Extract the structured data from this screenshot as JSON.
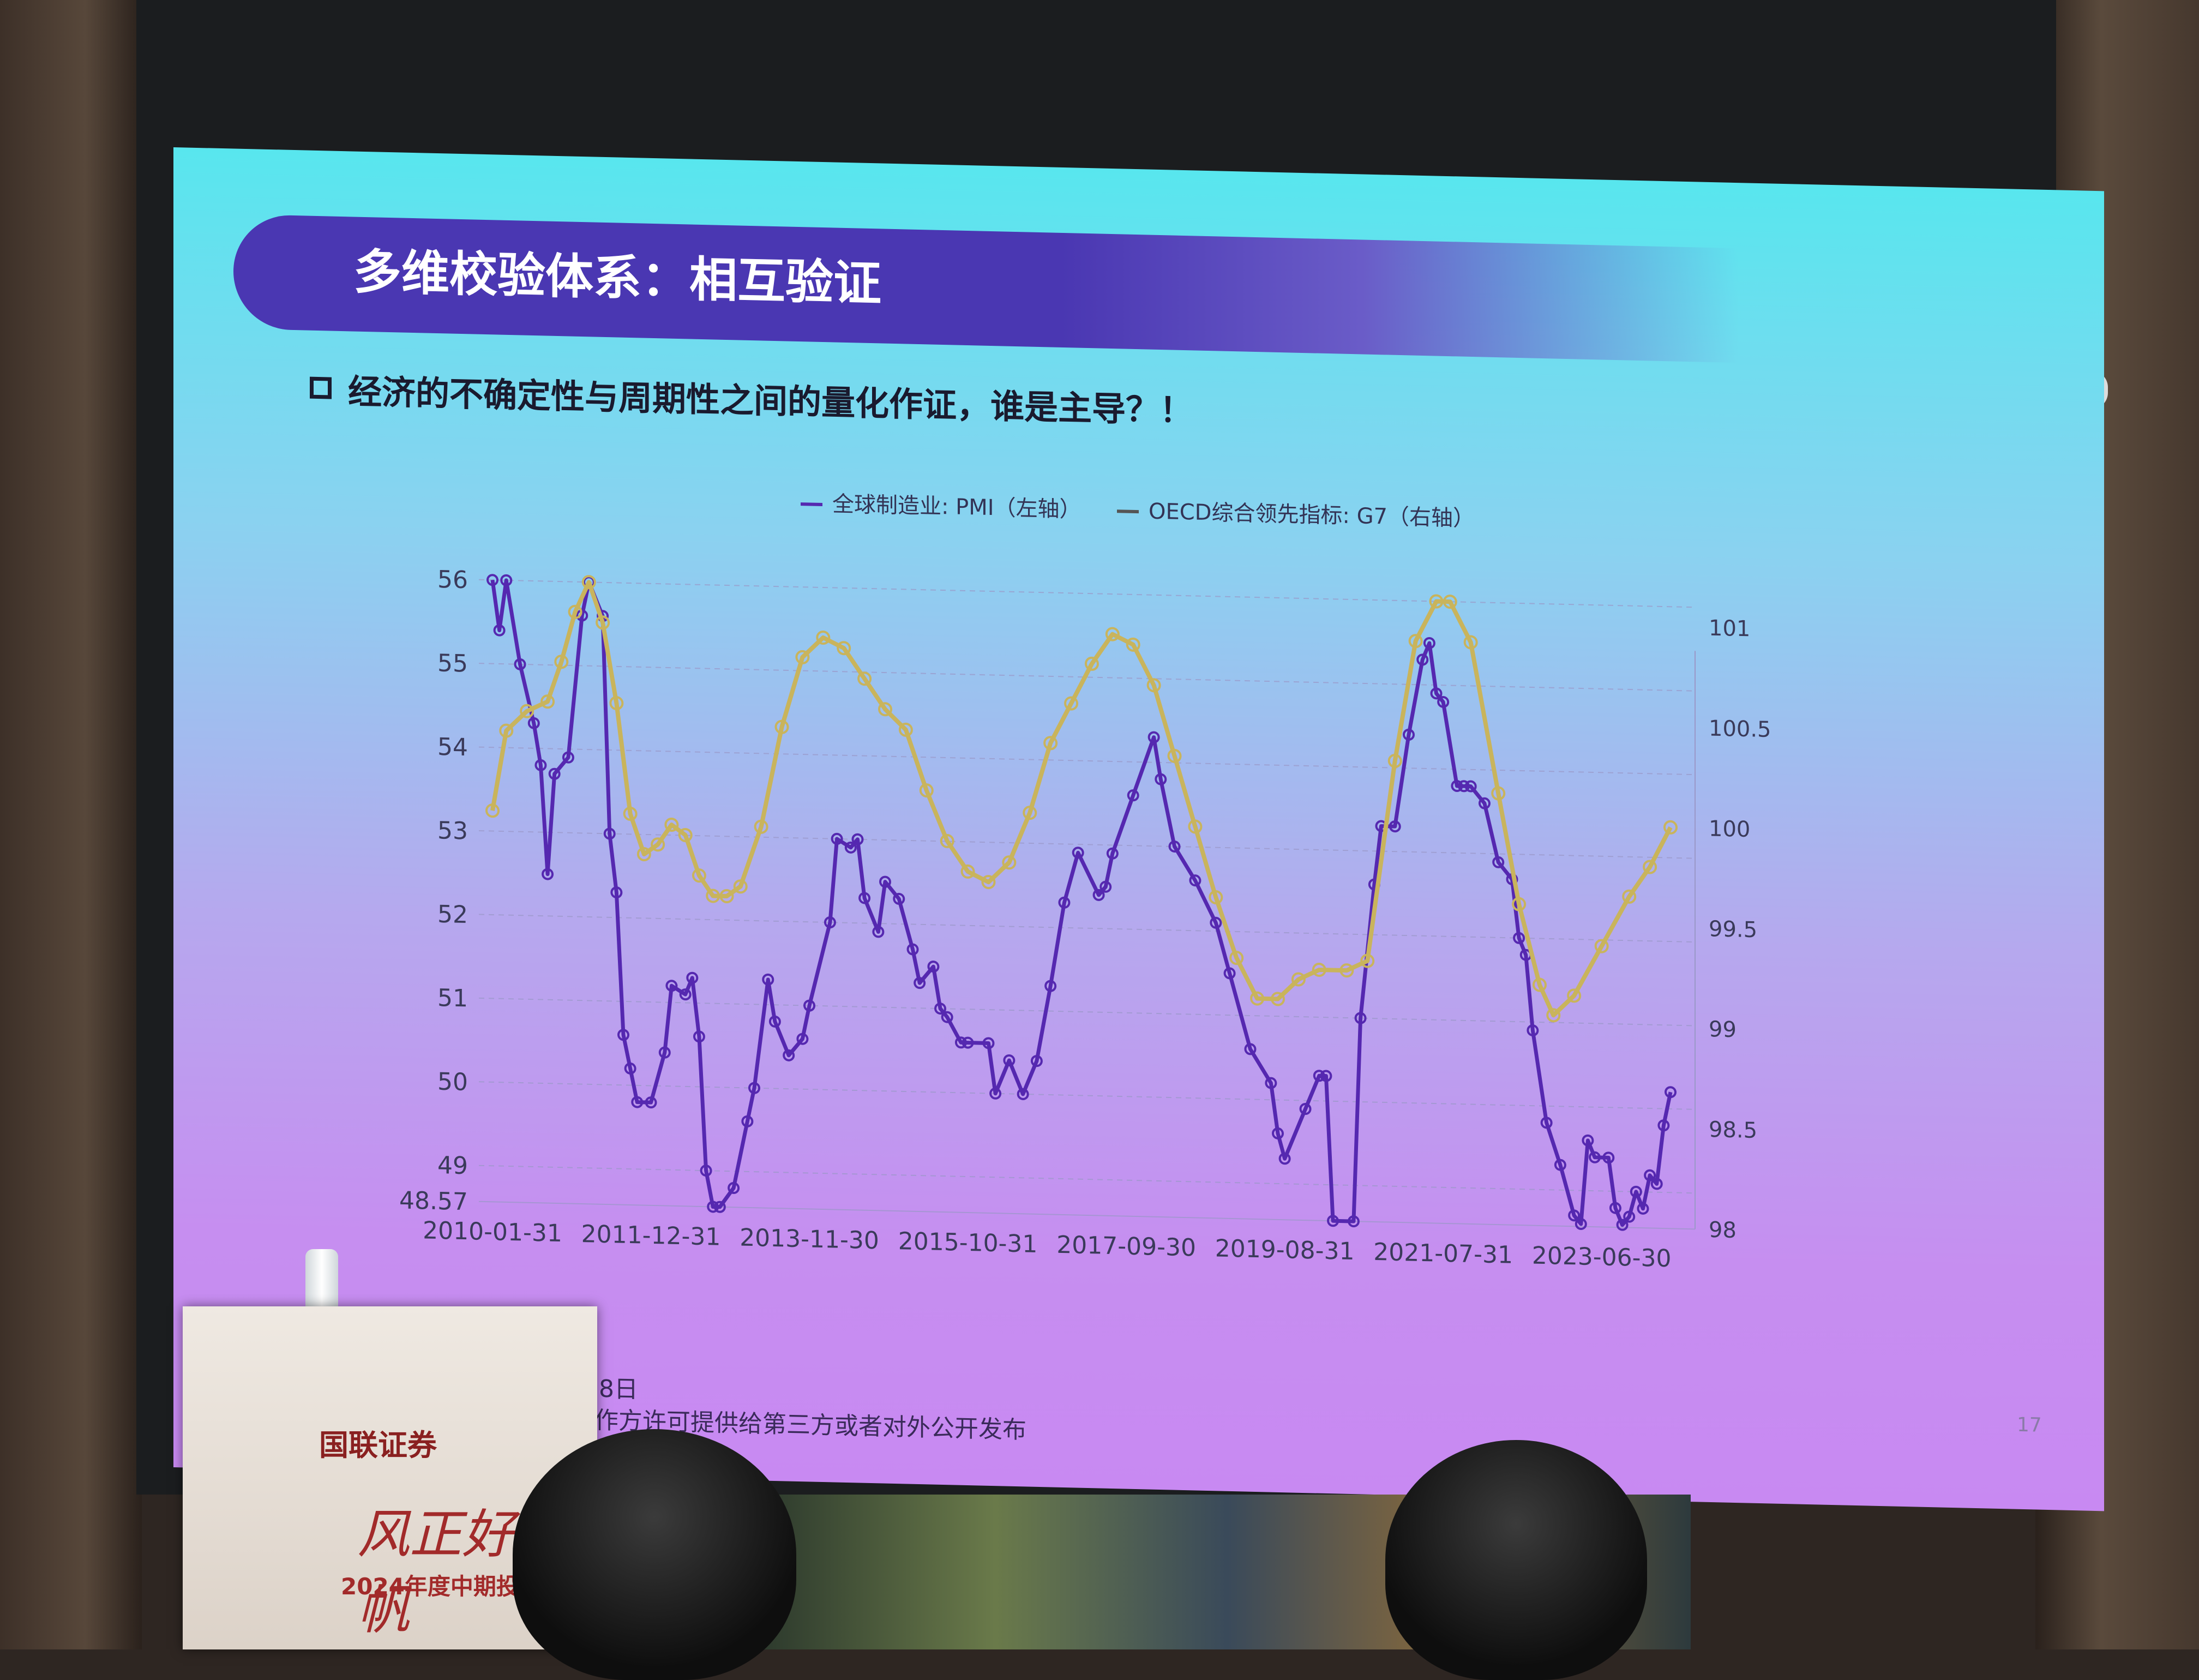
{
  "slide": {
    "title": "多维校验体系：相互验证",
    "subtitle": "经济的不确定性与周期性之间的量化作证，谁是主导？！",
    "footnote_line1": "周期；2024年5月8日",
    "footnote_line2": "参考，请勿未经制作方许可提供给第三方或者对外公开发布",
    "page_number": "17"
  },
  "podium": {
    "logo_text": "国联证券",
    "slogan": "风正好扬帆",
    "event_text": "2024年度中期投资"
  },
  "colors": {
    "pmi_line": "#5528b0",
    "oecd_line": "#c9b45c",
    "axis_text": "#3a3a5a",
    "grid": "#9a98c8"
  },
  "chart_data": {
    "type": "line",
    "legend": [
      "全球制造业: PMI（左轴）",
      "OECD综合领先指标: G7（右轴）"
    ],
    "legend_placement": "top-center",
    "x_ticks": [
      "2010-01-31",
      "2011-12-31",
      "2013-11-30",
      "2015-10-31",
      "2017-09-30",
      "2019-08-31",
      "2021-07-31",
      "2023-06-30"
    ],
    "x_range": [
      "2010-01-31",
      "2024-04-30"
    ],
    "y_left": {
      "ticks": [
        "48.57",
        "49",
        "50",
        "51",
        "52",
        "53",
        "54",
        "55",
        "56"
      ],
      "range": [
        48.57,
        56
      ]
    },
    "y_right": {
      "ticks": [
        "98",
        "98.5",
        "99",
        "99.5",
        "100",
        "100.5",
        "101"
      ],
      "range": [
        98,
        101.1
      ]
    },
    "grid": "horizontal dashed",
    "series": [
      {
        "name": "全球制造业: PMI（左轴）",
        "axis": "left",
        "points": [
          [
            "2010-01",
            56
          ],
          [
            "2010-02",
            55.4
          ],
          [
            "2010-03",
            56
          ],
          [
            "2010-05",
            55
          ],
          [
            "2010-07",
            54.3
          ],
          [
            "2010-08",
            53.8
          ],
          [
            "2010-09",
            52.5
          ],
          [
            "2010-10",
            53.7
          ],
          [
            "2010-12",
            53.9
          ],
          [
            "2011-02",
            55.6
          ],
          [
            "2011-03",
            56
          ],
          [
            "2011-05",
            55.6
          ],
          [
            "2011-06",
            53.0
          ],
          [
            "2011-07",
            52.3
          ],
          [
            "2011-08",
            50.6
          ],
          [
            "2011-09",
            50.2
          ],
          [
            "2011-10",
            49.8
          ],
          [
            "2011-12",
            49.8
          ],
          [
            "2012-02",
            50.4
          ],
          [
            "2012-03",
            51.2
          ],
          [
            "2012-05",
            51.1
          ],
          [
            "2012-06",
            51.3
          ],
          [
            "2012-07",
            50.6
          ],
          [
            "2012-08",
            49.0
          ],
          [
            "2012-09",
            48.57
          ],
          [
            "2012-10",
            48.57
          ],
          [
            "2012-12",
            48.8
          ],
          [
            "2013-02",
            49.6
          ],
          [
            "2013-03",
            50.0
          ],
          [
            "2013-05",
            51.3
          ],
          [
            "2013-06",
            50.8
          ],
          [
            "2013-08",
            50.4
          ],
          [
            "2013-10",
            50.6
          ],
          [
            "2013-11",
            51.0
          ],
          [
            "2014-02",
            52.0
          ],
          [
            "2014-03",
            53.0
          ],
          [
            "2014-05",
            52.9
          ],
          [
            "2014-06",
            53.0
          ],
          [
            "2014-07",
            52.3
          ],
          [
            "2014-09",
            51.9
          ],
          [
            "2014-10",
            52.5
          ],
          [
            "2014-12",
            52.3
          ],
          [
            "2015-02",
            51.7
          ],
          [
            "2015-03",
            51.3
          ],
          [
            "2015-05",
            51.5
          ],
          [
            "2015-06",
            51.0
          ],
          [
            "2015-07",
            50.9
          ],
          [
            "2015-09",
            50.6
          ],
          [
            "2015-10",
            50.6
          ],
          [
            "2016-01",
            50.6
          ],
          [
            "2016-02",
            50.0
          ],
          [
            "2016-04",
            50.4
          ],
          [
            "2016-06",
            50.0
          ],
          [
            "2016-08",
            50.4
          ],
          [
            "2016-10",
            51.3
          ],
          [
            "2016-12",
            52.3
          ],
          [
            "2017-02",
            52.9
          ],
          [
            "2017-05",
            52.4
          ],
          [
            "2017-06",
            52.5
          ],
          [
            "2017-07",
            52.9
          ],
          [
            "2017-10",
            53.6
          ],
          [
            "2018-01",
            54.3
          ],
          [
            "2018-02",
            53.8
          ],
          [
            "2018-04",
            53.0
          ],
          [
            "2018-07",
            52.6
          ],
          [
            "2018-10",
            52.1
          ],
          [
            "2018-12",
            51.5
          ],
          [
            "2019-03",
            50.6
          ],
          [
            "2019-06",
            50.2
          ],
          [
            "2019-07",
            49.6
          ],
          [
            "2019-08",
            49.3
          ],
          [
            "2019-11",
            49.9
          ],
          [
            "2020-01",
            50.3
          ],
          [
            "2020-02",
            50.3
          ],
          [
            "2020-03",
            48.57
          ],
          [
            "2020-06",
            48.57
          ],
          [
            "2020-07",
            51.0
          ],
          [
            "2020-09",
            52.6
          ],
          [
            "2020-10",
            53.3
          ],
          [
            "2020-12",
            53.3
          ],
          [
            "2021-02",
            54.4
          ],
          [
            "2021-04",
            55.3
          ],
          [
            "2021-05",
            55.5
          ],
          [
            "2021-06",
            54.9
          ],
          [
            "2021-07",
            54.8
          ],
          [
            "2021-09",
            53.8
          ],
          [
            "2021-10",
            53.8
          ],
          [
            "2021-11",
            53.8
          ],
          [
            "2022-01",
            53.6
          ],
          [
            "2022-03",
            52.9
          ],
          [
            "2022-05",
            52.7
          ],
          [
            "2022-06",
            52.0
          ],
          [
            "2022-07",
            51.8
          ],
          [
            "2022-08",
            50.9
          ],
          [
            "2022-10",
            49.8
          ],
          [
            "2022-12",
            49.3
          ],
          [
            "2023-02",
            48.7
          ],
          [
            "2023-03",
            48.6
          ],
          [
            "2023-04",
            49.6
          ],
          [
            "2023-05",
            49.4
          ],
          [
            "2023-07",
            49.4
          ],
          [
            "2023-08",
            48.8
          ],
          [
            "2023-09",
            48.6
          ],
          [
            "2023-10",
            48.7
          ],
          [
            "2023-11",
            49.0
          ],
          [
            "2023-12",
            48.8
          ],
          [
            "2024-01",
            49.2
          ],
          [
            "2024-02",
            49.1
          ],
          [
            "2024-03",
            49.8
          ],
          [
            "2024-04",
            50.2
          ]
        ]
      },
      {
        "name": "OECD综合领先指标: G7（右轴）",
        "axis": "right",
        "points": [
          [
            "2010-01",
            99.95
          ],
          [
            "2010-03",
            100.35
          ],
          [
            "2010-06",
            100.45
          ],
          [
            "2010-09",
            100.5
          ],
          [
            "2010-11",
            100.7
          ],
          [
            "2011-01",
            100.95
          ],
          [
            "2011-03",
            101.1
          ],
          [
            "2011-05",
            100.9
          ],
          [
            "2011-07",
            100.5
          ],
          [
            "2011-09",
            99.95
          ],
          [
            "2011-11",
            99.75
          ],
          [
            "2012-01",
            99.8
          ],
          [
            "2012-03",
            99.9
          ],
          [
            "2012-05",
            99.85
          ],
          [
            "2012-07",
            99.65
          ],
          [
            "2012-09",
            99.55
          ],
          [
            "2012-11",
            99.55
          ],
          [
            "2013-01",
            99.6
          ],
          [
            "2013-04",
            99.9
          ],
          [
            "2013-07",
            100.4
          ],
          [
            "2013-10",
            100.75
          ],
          [
            "2014-01",
            100.85
          ],
          [
            "2014-04",
            100.8
          ],
          [
            "2014-07",
            100.65
          ],
          [
            "2014-10",
            100.5
          ],
          [
            "2015-01",
            100.4
          ],
          [
            "2015-04",
            100.1
          ],
          [
            "2015-07",
            99.85
          ],
          [
            "2015-10",
            99.7
          ],
          [
            "2016-01",
            99.65
          ],
          [
            "2016-04",
            99.75
          ],
          [
            "2016-07",
            100.0
          ],
          [
            "2016-10",
            100.35
          ],
          [
            "2017-01",
            100.55
          ],
          [
            "2017-04",
            100.75
          ],
          [
            "2017-07",
            100.9
          ],
          [
            "2017-10",
            100.85
          ],
          [
            "2018-01",
            100.65
          ],
          [
            "2018-04",
            100.3
          ],
          [
            "2018-07",
            99.95
          ],
          [
            "2018-10",
            99.6
          ],
          [
            "2019-01",
            99.3
          ],
          [
            "2019-04",
            99.1
          ],
          [
            "2019-07",
            99.1
          ],
          [
            "2019-10",
            99.2
          ],
          [
            "2020-01",
            99.25
          ],
          [
            "2020-05",
            99.25
          ],
          [
            "2020-08",
            99.3
          ],
          [
            "2020-12",
            100.3
          ],
          [
            "2021-03",
            100.9
          ],
          [
            "2021-06",
            101.15
          ],
          [
            "2021-08",
            101.1
          ],
          [
            "2021-11",
            100.9
          ],
          [
            "2022-03",
            100.15
          ],
          [
            "2022-06",
            99.6
          ],
          [
            "2022-09",
            99.2
          ],
          [
            "2022-11",
            99.05
          ],
          [
            "2023-02",
            99.15
          ],
          [
            "2023-06",
            99.4
          ],
          [
            "2023-10",
            99.65
          ],
          [
            "2024-01",
            99.8
          ],
          [
            "2024-04",
            100.0
          ]
        ]
      }
    ]
  }
}
